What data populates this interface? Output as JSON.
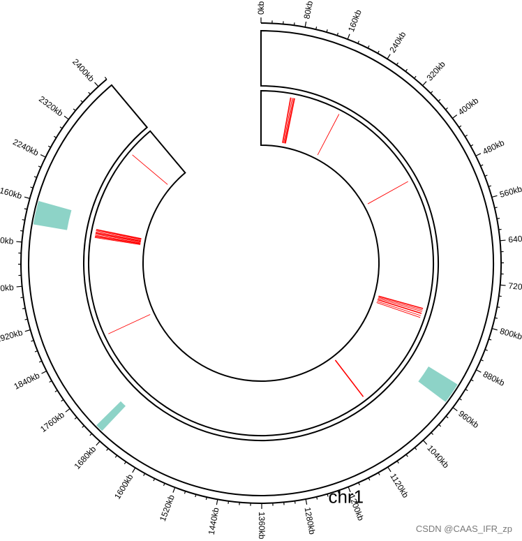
{
  "chart_data": {
    "type": "circos",
    "chromosome": {
      "name": "chr1",
      "length_kb": 2420,
      "label_every_kb": 80,
      "minor_tick_every_kb": 20
    },
    "tracks": [
      {
        "name": "",
        "type": "rect",
        "color": "#8dd3c7",
        "features": [
          {
            "start_kb": 920,
            "end_kb": 960
          },
          {
            "start_kb": 1690,
            "end_kb": 1705
          },
          {
            "start_kb": 2115,
            "end_kb": 2160
          }
        ]
      },
      {
        "name": "",
        "type": "lines",
        "color": "#ff0000",
        "features": [
          {
            "pos_kb": 77
          },
          {
            "pos_kb": 81
          },
          {
            "pos_kb": 84
          },
          {
            "pos_kb": 87
          },
          {
            "pos_kb": 209
          },
          {
            "pos_kb": 461
          },
          {
            "pos_kb": 799
          },
          {
            "pos_kb": 803
          },
          {
            "pos_kb": 807
          },
          {
            "pos_kb": 812
          },
          {
            "pos_kb": 818
          },
          {
            "pos_kb": 823
          },
          {
            "pos_kb": 1078
          },
          {
            "pos_kb": 1854
          },
          {
            "pos_kb": 2108
          },
          {
            "pos_kb": 2111
          },
          {
            "pos_kb": 2114
          },
          {
            "pos_kb": 2117
          },
          {
            "pos_kb": 2120
          },
          {
            "pos_kb": 2123
          },
          {
            "pos_kb": 2126
          },
          {
            "pos_kb": 2129
          },
          {
            "pos_kb": 2345
          }
        ]
      }
    ]
  },
  "watermark": "CSDN @CAAS_IFR_zp"
}
